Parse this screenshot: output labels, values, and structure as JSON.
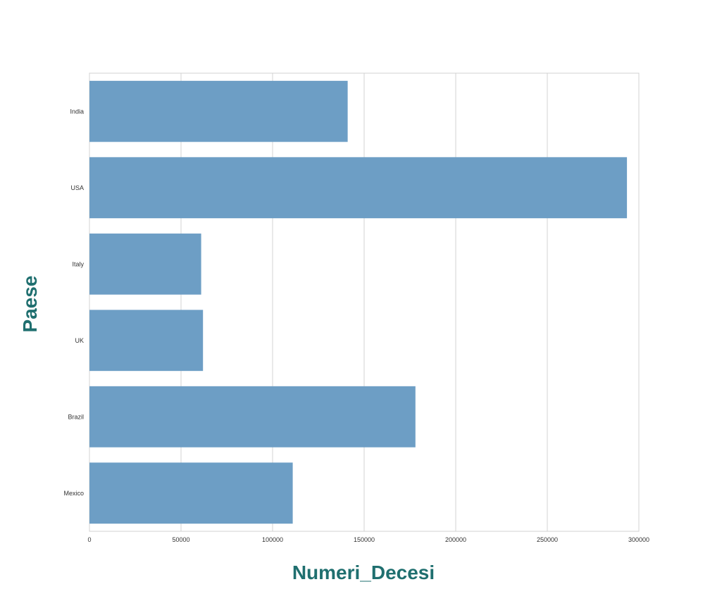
{
  "chart_data": {
    "type": "bar",
    "orientation": "horizontal",
    "categories": [
      "India",
      "USA",
      "Italy",
      "UK",
      "Brazil",
      "Mexico"
    ],
    "values": [
      141000,
      293500,
      61000,
      62000,
      178000,
      111000
    ],
    "xlabel": "Numeri_Decesi",
    "ylabel": "Paese",
    "xlim": [
      0,
      300000
    ],
    "xticks": [
      "0",
      "50000",
      "100000",
      "150000",
      "200000",
      "250000",
      "300000"
    ],
    "grid": true,
    "bar_color": "#6d9ec5"
  }
}
